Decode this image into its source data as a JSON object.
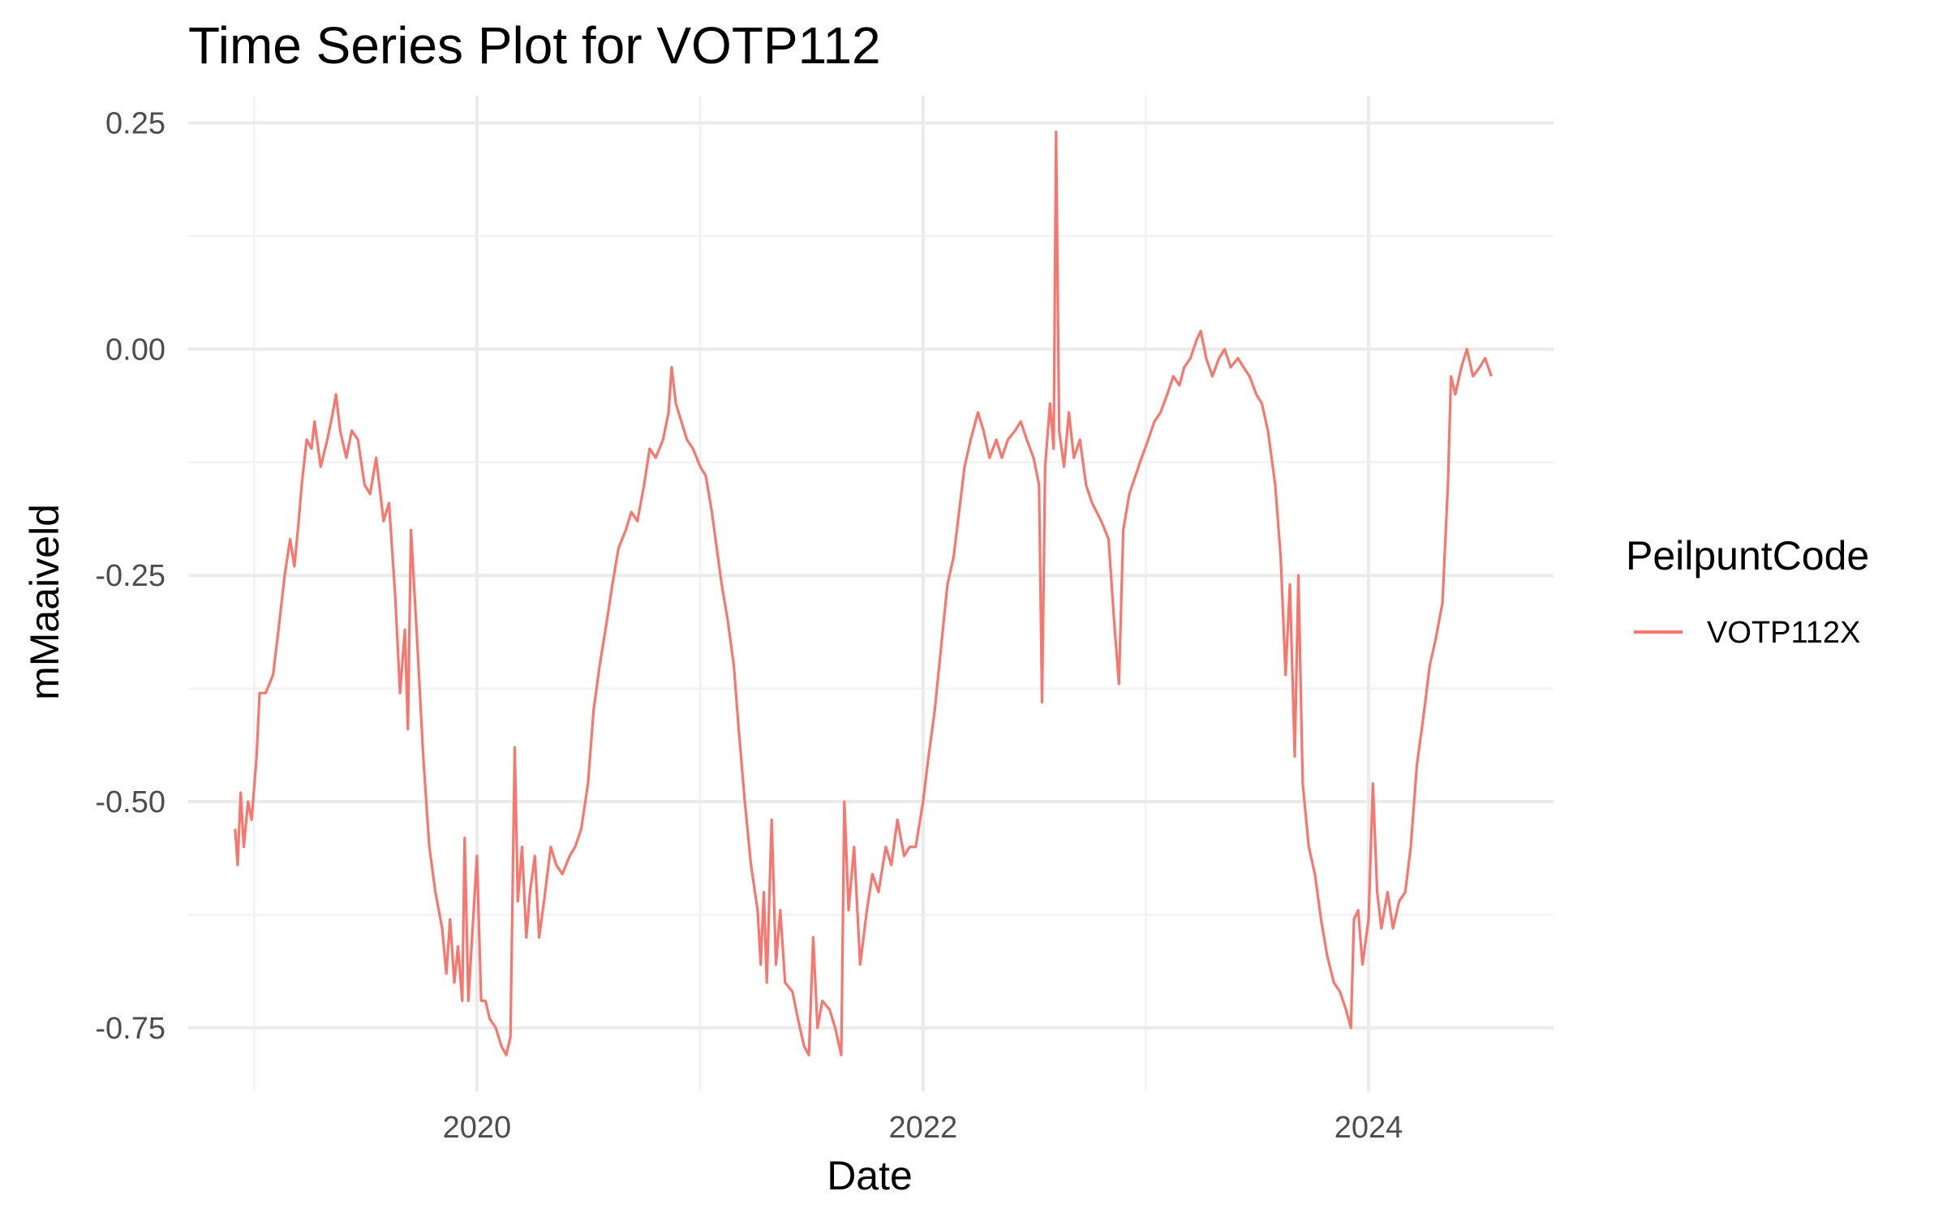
{
  "chart_data": {
    "type": "line",
    "title": "Time Series Plot for VOTP112",
    "xlabel": "Date",
    "ylabel": "mMaaiveld",
    "x_ticks": [
      "2020",
      "2022",
      "2024"
    ],
    "y_ticks": [
      "0.25",
      "0.00",
      "-0.25",
      "-0.50",
      "-0.75"
    ],
    "xlim": [
      "2018-09-15",
      "2024-10-30"
    ],
    "ylim": [
      -0.82,
      0.28
    ],
    "grid": true,
    "legend": {
      "title": "PeilpuntCode",
      "position": "right"
    },
    "series": [
      {
        "name": "VOTP112X",
        "color": "#F8766D",
        "points": [
          [
            "2018-12-01",
            -0.53
          ],
          [
            "2018-12-05",
            -0.57
          ],
          [
            "2018-12-10",
            -0.49
          ],
          [
            "2018-12-15",
            -0.55
          ],
          [
            "2018-12-22",
            -0.5
          ],
          [
            "2018-12-28",
            -0.52
          ],
          [
            "2019-01-05",
            -0.45
          ],
          [
            "2019-01-10",
            -0.38
          ],
          [
            "2019-01-20",
            -0.38
          ],
          [
            "2019-02-01",
            -0.36
          ],
          [
            "2019-02-10",
            -0.31
          ],
          [
            "2019-02-20",
            -0.25
          ],
          [
            "2019-03-01",
            -0.21
          ],
          [
            "2019-03-08",
            -0.24
          ],
          [
            "2019-03-15",
            -0.19
          ],
          [
            "2019-03-20",
            -0.15
          ],
          [
            "2019-03-28",
            -0.1
          ],
          [
            "2019-04-05",
            -0.11
          ],
          [
            "2019-04-10",
            -0.08
          ],
          [
            "2019-04-20",
            -0.13
          ],
          [
            "2019-05-01",
            -0.1
          ],
          [
            "2019-05-10",
            -0.07
          ],
          [
            "2019-05-15",
            -0.05
          ],
          [
            "2019-05-22",
            -0.09
          ],
          [
            "2019-06-01",
            -0.12
          ],
          [
            "2019-06-10",
            -0.09
          ],
          [
            "2019-06-20",
            -0.1
          ],
          [
            "2019-07-01",
            -0.15
          ],
          [
            "2019-07-10",
            -0.16
          ],
          [
            "2019-07-20",
            -0.12
          ],
          [
            "2019-08-01",
            -0.19
          ],
          [
            "2019-08-10",
            -0.17
          ],
          [
            "2019-08-20",
            -0.27
          ],
          [
            "2019-08-28",
            -0.38
          ],
          [
            "2019-09-05",
            -0.31
          ],
          [
            "2019-09-10",
            -0.42
          ],
          [
            "2019-09-15",
            -0.2
          ],
          [
            "2019-09-25",
            -0.32
          ],
          [
            "2019-10-05",
            -0.45
          ],
          [
            "2019-10-15",
            -0.55
          ],
          [
            "2019-10-25",
            -0.6
          ],
          [
            "2019-11-05",
            -0.64
          ],
          [
            "2019-11-12",
            -0.69
          ],
          [
            "2019-11-18",
            -0.63
          ],
          [
            "2019-11-25",
            -0.7
          ],
          [
            "2019-12-01",
            -0.66
          ],
          [
            "2019-12-08",
            -0.72
          ],
          [
            "2019-12-12",
            -0.54
          ],
          [
            "2019-12-18",
            -0.72
          ],
          [
            "2019-12-25",
            -0.64
          ],
          [
            "2020-01-01",
            -0.56
          ],
          [
            "2020-01-08",
            -0.72
          ],
          [
            "2020-01-15",
            -0.72
          ],
          [
            "2020-01-22",
            -0.74
          ],
          [
            "2020-02-01",
            -0.75
          ],
          [
            "2020-02-10",
            -0.77
          ],
          [
            "2020-02-18",
            -0.78
          ],
          [
            "2020-02-25",
            -0.76
          ],
          [
            "2020-03-03",
            -0.44
          ],
          [
            "2020-03-08",
            -0.61
          ],
          [
            "2020-03-15",
            -0.55
          ],
          [
            "2020-03-22",
            -0.65
          ],
          [
            "2020-03-28",
            -0.6
          ],
          [
            "2020-04-05",
            -0.56
          ],
          [
            "2020-04-12",
            -0.65
          ],
          [
            "2020-04-20",
            -0.61
          ],
          [
            "2020-05-01",
            -0.55
          ],
          [
            "2020-05-10",
            -0.57
          ],
          [
            "2020-05-20",
            -0.58
          ],
          [
            "2020-06-01",
            -0.56
          ],
          [
            "2020-06-10",
            -0.55
          ],
          [
            "2020-06-20",
            -0.53
          ],
          [
            "2020-07-01",
            -0.48
          ],
          [
            "2020-07-10",
            -0.4
          ],
          [
            "2020-07-20",
            -0.35
          ],
          [
            "2020-08-01",
            -0.3
          ],
          [
            "2020-08-10",
            -0.26
          ],
          [
            "2020-08-20",
            -0.22
          ],
          [
            "2020-09-01",
            -0.2
          ],
          [
            "2020-09-10",
            -0.18
          ],
          [
            "2020-09-20",
            -0.19
          ],
          [
            "2020-10-01",
            -0.15
          ],
          [
            "2020-10-10",
            -0.11
          ],
          [
            "2020-10-20",
            -0.12
          ],
          [
            "2020-11-01",
            -0.1
          ],
          [
            "2020-11-10",
            -0.07
          ],
          [
            "2020-11-15",
            -0.02
          ],
          [
            "2020-11-22",
            -0.06
          ],
          [
            "2020-12-01",
            -0.08
          ],
          [
            "2020-12-10",
            -0.1
          ],
          [
            "2020-12-20",
            -0.11
          ],
          [
            "2021-01-01",
            -0.13
          ],
          [
            "2021-01-10",
            -0.14
          ],
          [
            "2021-01-20",
            -0.18
          ],
          [
            "2021-01-28",
            -0.22
          ],
          [
            "2021-02-05",
            -0.26
          ],
          [
            "2021-02-15",
            -0.3
          ],
          [
            "2021-02-25",
            -0.35
          ],
          [
            "2021-03-05",
            -0.42
          ],
          [
            "2021-03-15",
            -0.5
          ],
          [
            "2021-03-25",
            -0.57
          ],
          [
            "2021-04-05",
            -0.62
          ],
          [
            "2021-04-10",
            -0.68
          ],
          [
            "2021-04-15",
            -0.6
          ],
          [
            "2021-04-20",
            -0.7
          ],
          [
            "2021-04-28",
            -0.52
          ],
          [
            "2021-05-05",
            -0.68
          ],
          [
            "2021-05-12",
            -0.62
          ],
          [
            "2021-05-20",
            -0.7
          ],
          [
            "2021-06-01",
            -0.71
          ],
          [
            "2021-06-10",
            -0.74
          ],
          [
            "2021-06-20",
            -0.77
          ],
          [
            "2021-06-28",
            -0.78
          ],
          [
            "2021-07-05",
            -0.65
          ],
          [
            "2021-07-12",
            -0.75
          ],
          [
            "2021-07-20",
            -0.72
          ],
          [
            "2021-08-01",
            -0.73
          ],
          [
            "2021-08-10",
            -0.75
          ],
          [
            "2021-08-20",
            -0.78
          ],
          [
            "2021-08-25",
            -0.5
          ],
          [
            "2021-09-01",
            -0.62
          ],
          [
            "2021-09-10",
            -0.55
          ],
          [
            "2021-09-20",
            -0.68
          ],
          [
            "2021-10-01",
            -0.62
          ],
          [
            "2021-10-10",
            -0.58
          ],
          [
            "2021-10-20",
            -0.6
          ],
          [
            "2021-11-01",
            -0.55
          ],
          [
            "2021-11-10",
            -0.57
          ],
          [
            "2021-11-20",
            -0.52
          ],
          [
            "2021-12-01",
            -0.56
          ],
          [
            "2021-12-10",
            -0.55
          ],
          [
            "2021-12-20",
            -0.55
          ],
          [
            "2022-01-01",
            -0.5
          ],
          [
            "2022-01-10",
            -0.45
          ],
          [
            "2022-01-20",
            -0.4
          ],
          [
            "2022-02-01",
            -0.32
          ],
          [
            "2022-02-10",
            -0.26
          ],
          [
            "2022-02-20",
            -0.23
          ],
          [
            "2022-03-01",
            -0.18
          ],
          [
            "2022-03-10",
            -0.13
          ],
          [
            "2022-03-20",
            -0.1
          ],
          [
            "2022-04-01",
            -0.07
          ],
          [
            "2022-04-10",
            -0.09
          ],
          [
            "2022-04-20",
            -0.12
          ],
          [
            "2022-05-01",
            -0.1
          ],
          [
            "2022-05-10",
            -0.12
          ],
          [
            "2022-05-20",
            -0.1
          ],
          [
            "2022-06-01",
            -0.09
          ],
          [
            "2022-06-10",
            -0.08
          ],
          [
            "2022-06-20",
            -0.1
          ],
          [
            "2022-07-01",
            -0.12
          ],
          [
            "2022-07-10",
            -0.15
          ],
          [
            "2022-07-15",
            -0.39
          ],
          [
            "2022-07-20",
            -0.13
          ],
          [
            "2022-07-28",
            -0.06
          ],
          [
            "2022-08-03",
            -0.11
          ],
          [
            "2022-08-07",
            0.24
          ],
          [
            "2022-08-12",
            -0.09
          ],
          [
            "2022-08-20",
            -0.13
          ],
          [
            "2022-08-28",
            -0.07
          ],
          [
            "2022-09-05",
            -0.12
          ],
          [
            "2022-09-15",
            -0.1
          ],
          [
            "2022-09-25",
            -0.15
          ],
          [
            "2022-10-05",
            -0.17
          ],
          [
            "2022-10-20",
            -0.19
          ],
          [
            "2022-11-01",
            -0.21
          ],
          [
            "2022-11-10",
            -0.3
          ],
          [
            "2022-11-18",
            -0.37
          ],
          [
            "2022-11-25",
            -0.2
          ],
          [
            "2022-12-05",
            -0.16
          ],
          [
            "2022-12-15",
            -0.14
          ],
          [
            "2022-12-25",
            -0.12
          ],
          [
            "2023-01-05",
            -0.1
          ],
          [
            "2023-01-15",
            -0.08
          ],
          [
            "2023-01-25",
            -0.07
          ],
          [
            "2023-02-05",
            -0.05
          ],
          [
            "2023-02-15",
            -0.03
          ],
          [
            "2023-02-25",
            -0.04
          ],
          [
            "2023-03-05",
            -0.02
          ],
          [
            "2023-03-15",
            -0.01
          ],
          [
            "2023-03-25",
            0.01
          ],
          [
            "2023-04-01",
            0.02
          ],
          [
            "2023-04-10",
            -0.01
          ],
          [
            "2023-04-20",
            -0.03
          ],
          [
            "2023-05-01",
            -0.01
          ],
          [
            "2023-05-10",
            0.0
          ],
          [
            "2023-05-20",
            -0.02
          ],
          [
            "2023-06-01",
            -0.01
          ],
          [
            "2023-06-10",
            -0.02
          ],
          [
            "2023-06-20",
            -0.03
          ],
          [
            "2023-07-01",
            -0.05
          ],
          [
            "2023-07-10",
            -0.06
          ],
          [
            "2023-07-20",
            -0.09
          ],
          [
            "2023-08-01",
            -0.15
          ],
          [
            "2023-08-10",
            -0.23
          ],
          [
            "2023-08-18",
            -0.36
          ],
          [
            "2023-08-25",
            -0.26
          ],
          [
            "2023-09-02",
            -0.45
          ],
          [
            "2023-09-08",
            -0.25
          ],
          [
            "2023-09-15",
            -0.48
          ],
          [
            "2023-09-25",
            -0.55
          ],
          [
            "2023-10-05",
            -0.58
          ],
          [
            "2023-10-15",
            -0.63
          ],
          [
            "2023-10-25",
            -0.67
          ],
          [
            "2023-11-05",
            -0.7
          ],
          [
            "2023-11-15",
            -0.71
          ],
          [
            "2023-11-25",
            -0.73
          ],
          [
            "2023-12-03",
            -0.75
          ],
          [
            "2023-12-08",
            -0.63
          ],
          [
            "2023-12-15",
            -0.62
          ],
          [
            "2023-12-22",
            -0.68
          ],
          [
            "2024-01-01",
            -0.63
          ],
          [
            "2024-01-08",
            -0.48
          ],
          [
            "2024-01-15",
            -0.6
          ],
          [
            "2024-01-22",
            -0.64
          ],
          [
            "2024-02-01",
            -0.6
          ],
          [
            "2024-02-10",
            -0.64
          ],
          [
            "2024-02-20",
            -0.61
          ],
          [
            "2024-03-01",
            -0.6
          ],
          [
            "2024-03-10",
            -0.55
          ],
          [
            "2024-03-20",
            -0.46
          ],
          [
            "2024-04-01",
            -0.4
          ],
          [
            "2024-04-10",
            -0.35
          ],
          [
            "2024-04-20",
            -0.32
          ],
          [
            "2024-05-01",
            -0.28
          ],
          [
            "2024-05-10",
            -0.15
          ],
          [
            "2024-05-15",
            -0.03
          ],
          [
            "2024-05-22",
            -0.05
          ],
          [
            "2024-06-01",
            -0.02
          ],
          [
            "2024-06-10",
            0.0
          ],
          [
            "2024-06-20",
            -0.03
          ],
          [
            "2024-07-01",
            -0.02
          ],
          [
            "2024-07-10",
            -0.01
          ],
          [
            "2024-07-20",
            -0.03
          ]
        ]
      }
    ]
  }
}
